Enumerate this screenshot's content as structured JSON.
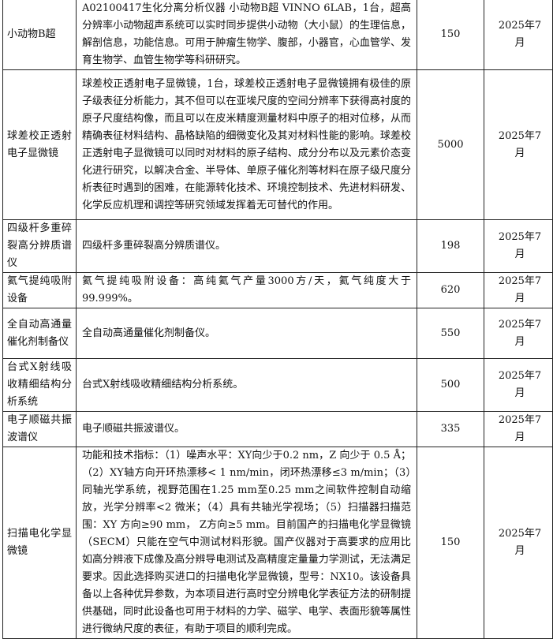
{
  "table": {
    "rows": [
      {
        "name": "小动物B超",
        "desc": "A02100417生化分离分析仪器 小动物B超 VINNO 6LAB，1台，超高分辨率小动物超声系统可以实时同步提供小动物（大小鼠）的生理信息，解剖信息，功能信息。可用于肿瘤生物学、腹部，小器官，心血管学、发育生物学、血管生物学等科研研究。",
        "amount": "150",
        "date": "2025年7月"
      },
      {
        "name": "球差校正透射电子显微镜",
        "desc": "球差校正透射电子显微镜，1台，球差校正透射电子显微镜拥有极佳的原子级表征分析能力，其不但可以在亚埃尺度的空间分辨率下获得高衬度的原子尺度结构像，而且可以在皮米精度测量材料中原子的相对位移，从而精确表征材料结构、晶格缺陷的细微变化及其对材料性能的影响。球差校正透射电子显微镜可以同时对材料的原子结构、成分分布以及元素价态变化进行研究，以解决合金、半导体、单原子催化剂等材料在原子级尺度分析表征时遇到的困难，在能源转化技术、环境控制技术、先进材料研发、化学反应机理和调控等研究领域发挥着无可替代的作用。",
        "amount": "5000",
        "date": "2025年7月"
      },
      {
        "name": "四级杆多重碎裂高分辨质谱仪",
        "desc": "四级杆多重碎裂高分辨质谱仪。",
        "amount": "198",
        "date": "2025年7月"
      },
      {
        "name": "氦气提纯吸附设备",
        "desc": "氦气提纯吸附设备：高纯氦气产量3000方/天，氦气纯度大于99.999%。",
        "amount": "620",
        "date": "2025年7月"
      },
      {
        "name": "全自动高通量催化剂制备仪",
        "desc": "全自动高通量催化剂制备仪。",
        "amount": "550",
        "date": "2025年7月"
      },
      {
        "name": "台式X射线吸收精细结构分析系统",
        "desc": "台式X射线吸收精细结构分析系统。",
        "amount": "500",
        "date": "2025年7月"
      },
      {
        "name": "电子顺磁共振波谱仪",
        "desc": "电子顺磁共振波谱仪。",
        "amount": "335",
        "date": "2025年7月"
      },
      {
        "name": "扫描电化学显微镜",
        "desc": "功能和技术指标：（1）噪声水平：XY向少于0.2 nm，Z 向少于 0.5 Å；（2）XY轴方向开环热漂移< 1 nm/min，闭环热漂移≤3 m/min；（3）同轴光学系统，视野范围在1.25 mm至0.25 mm之间软件控制自动缩放，光学分辨率<2 微米；（4）具有共轴光学视场；（5）扫描器扫描范围：XY 方向≥90 mm， Z方向≥5 mm。目前国产的扫描电化学显微镜（SECM）只能在空气中测试材料形貌。国产仪器对于高要求的应用比如高分辨液下成像及高分辨导电测试及高精度定量量力学测试，无法满足要求。因此选择购买进口的扫描电化学显微镜，型号：NX10。该设备具备以上各种优异参数，为本项目进行高时空分辨电化学表征方法的研制提供基础，同时此设备也可用于材料的力学、磁学、电学、表面形貌等属性进行微纳尺度的表征，有助于项目的顺利完成。",
        "amount": "150",
        "date": "2025年7月"
      }
    ]
  }
}
